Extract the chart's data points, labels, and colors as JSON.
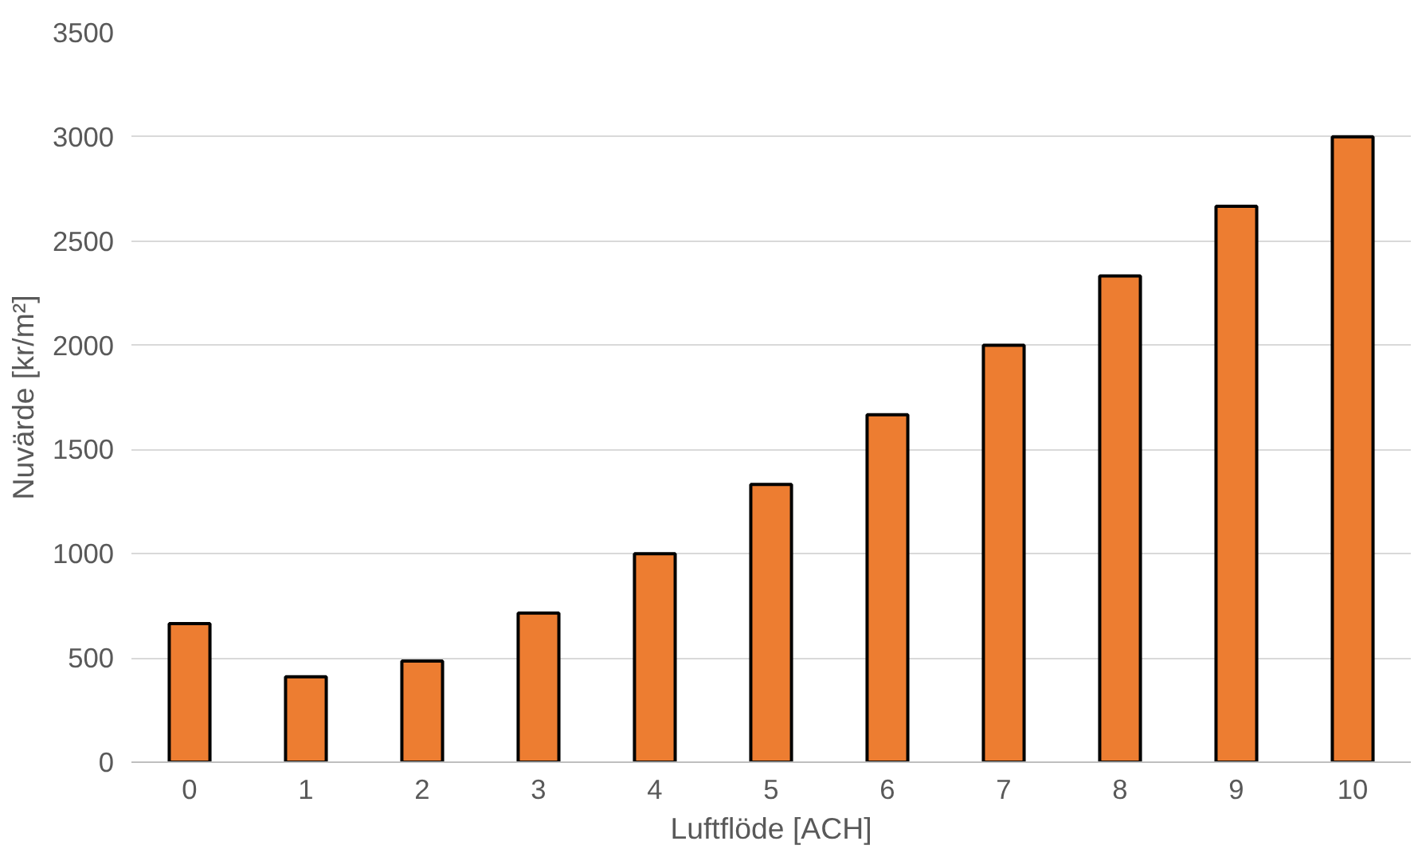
{
  "chart_data": {
    "type": "bar",
    "xlabel": "Luftflöde [ACH]",
    "ylabel": "Nuvärde [kr/m²]",
    "categories": [
      "0",
      "1",
      "2",
      "3",
      "4",
      "5",
      "6",
      "7",
      "8",
      "9",
      "10"
    ],
    "values": [
      665,
      410,
      485,
      715,
      1000,
      1333,
      1667,
      2000,
      2333,
      2667,
      3000
    ],
    "color": "#ed7d31",
    "ylim": [
      0,
      3500
    ],
    "yticks": [
      0,
      500,
      1000,
      1500,
      2000,
      2500,
      3000,
      3500
    ],
    "grid": "y"
  }
}
